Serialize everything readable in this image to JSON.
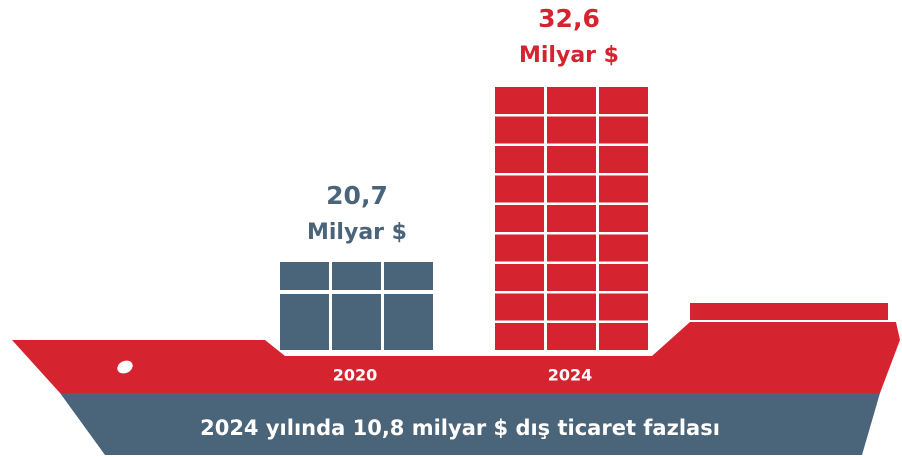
{
  "ships": [
    {
      "year": "2020",
      "amount": "20,7",
      "unit": "Milyar $"
    },
    {
      "year": "2024",
      "amount": "32,6",
      "unit": "Milyar $"
    }
  ],
  "caption": "2024 yılında  10,8 milyar $ dış ticaret fazlası"
}
